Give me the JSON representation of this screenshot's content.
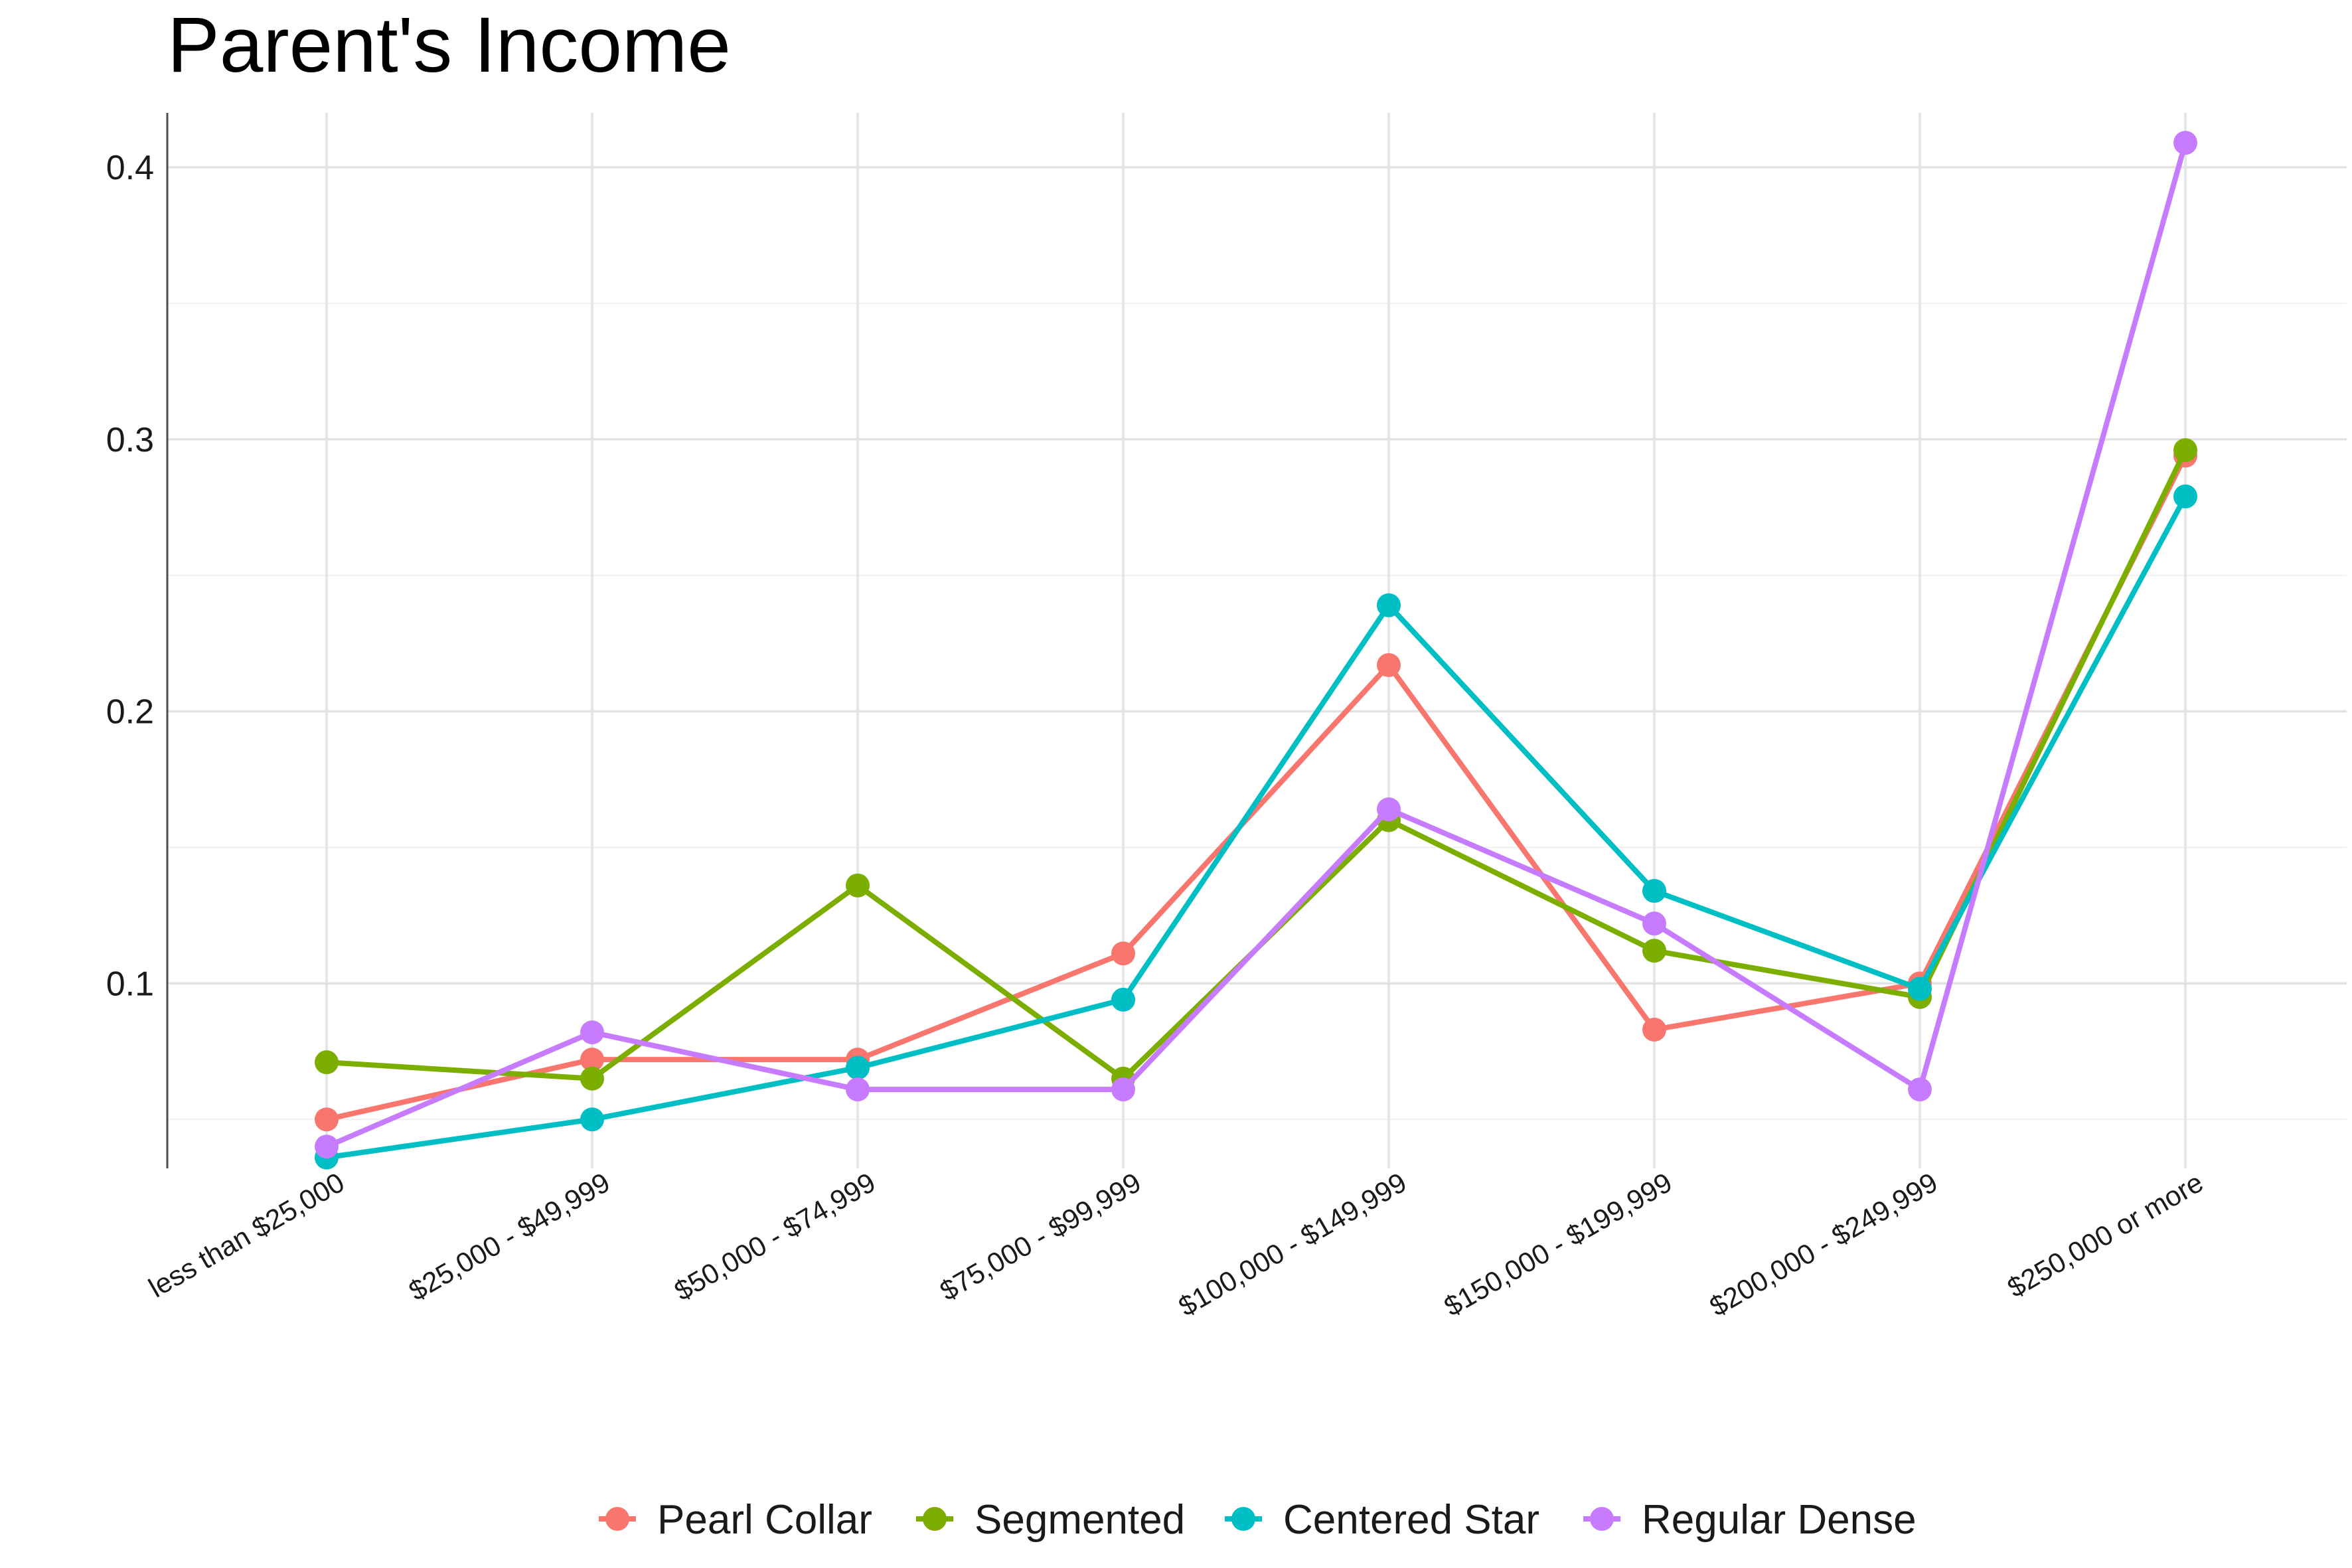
{
  "chart_data": {
    "type": "line",
    "title": "Parent's Income",
    "xlabel": "",
    "ylabel": "",
    "categories": [
      "less than $25,000",
      "$25,000 - $49,999",
      "$50,000 - $74,999",
      "$75,000 - $99,999",
      "$100,000 - $149,999",
      "$150,000 - $199,999",
      "$200,000 - $249,999",
      "$250,000 or more"
    ],
    "ylim": [
      0.032,
      0.42
    ],
    "yticks": [
      0.1,
      0.2,
      0.3,
      0.4
    ],
    "ytick_labels": [
      "0.1",
      "0.2",
      "0.3",
      "0.4"
    ],
    "minor_yticks": [
      0.05,
      0.15,
      0.25,
      0.35
    ],
    "grid": true,
    "legend_position": "bottom",
    "series": [
      {
        "name": "Pearl Collar",
        "color": "#F8766D",
        "values": [
          0.05,
          0.072,
          0.072,
          0.111,
          0.217,
          0.083,
          0.1,
          0.294
        ]
      },
      {
        "name": "Segmented",
        "color": "#7CAE00",
        "values": [
          0.071,
          0.065,
          0.136,
          0.065,
          0.16,
          0.112,
          0.095,
          0.296
        ]
      },
      {
        "name": "Centered Star",
        "color": "#00BFC4",
        "values": [
          0.036,
          0.05,
          0.069,
          0.094,
          0.239,
          0.134,
          0.098,
          0.279
        ]
      },
      {
        "name": "Regular Dense",
        "color": "#C77CFF",
        "values": [
          0.04,
          0.082,
          0.061,
          0.061,
          0.164,
          0.122,
          0.061,
          0.409
        ]
      }
    ]
  }
}
